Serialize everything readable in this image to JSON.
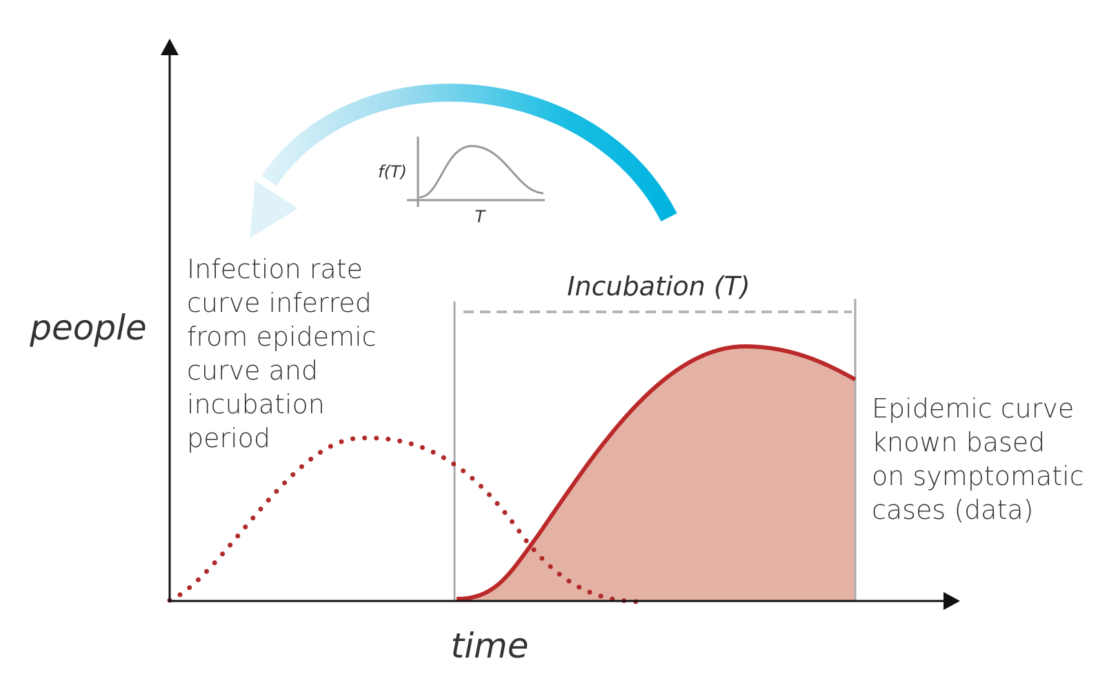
{
  "axes": {
    "y_label": "people",
    "x_label": "time"
  },
  "incubation": {
    "label": "Incubation (T)"
  },
  "inset": {
    "y_label": "f(T)",
    "x_label": "T"
  },
  "left_annotation": {
    "lines": [
      "Infection rate",
      "curve inferred",
      "from epidemic",
      "curve and",
      "incubation",
      "period"
    ]
  },
  "right_annotation": {
    "lines": [
      "Epidemic curve",
      "known based",
      "on symptomatic",
      "cases (data)"
    ]
  },
  "colors": {
    "axis": "#111111",
    "curve": "#bb2a2a",
    "fill": "#e3b2a4",
    "dotted": "#b02a2a",
    "bracket": "#aaaaaa",
    "dashed": "#b5b5b5",
    "arrow_start": "#e8f6fb",
    "arrow_end": "#00b3e0",
    "inset": "#999999",
    "text": "#333333"
  }
}
